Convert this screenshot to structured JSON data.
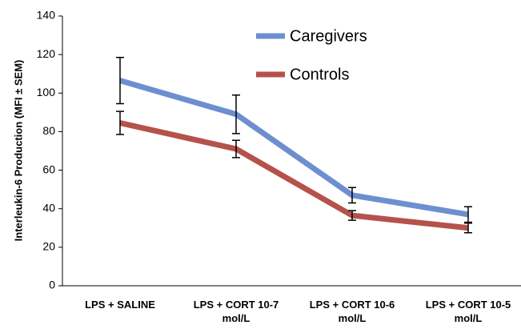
{
  "chart_data": {
    "type": "line",
    "y_label": "Interleukin-6 Production (MFI ± SEM)",
    "categories": [
      "LPS + SALINE",
      "LPS + CORT 10-7 mol/L",
      "LPS + CORT 10-6 mol/L",
      "LPS + CORT 10-5 mol/L"
    ],
    "series": [
      {
        "name": "Caregivers",
        "color": "#6d8fd0",
        "values": [
          106.5,
          89,
          47,
          37
        ],
        "errors": [
          12,
          10,
          4,
          4
        ]
      },
      {
        "name": "Controls",
        "color": "#b5524b",
        "values": [
          84.5,
          71,
          36.5,
          30
        ],
        "errors": [
          6,
          4.5,
          2.5,
          2.5
        ]
      }
    ],
    "ylim": [
      0,
      140
    ],
    "yticks": [
      0,
      20,
      40,
      60,
      80,
      100,
      120,
      140
    ]
  }
}
